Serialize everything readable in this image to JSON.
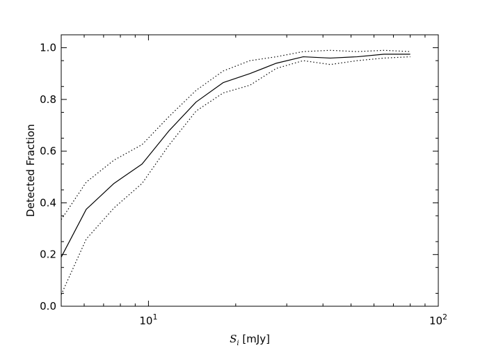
{
  "chart_data": {
    "type": "line",
    "title": "",
    "xlabel": {
      "math_symbol": "S",
      "math_subscript": "i",
      "unit": "[mJy]"
    },
    "ylabel": "Detected Fraction",
    "xscale": "log",
    "xlim": [
      5,
      100
    ],
    "ylim": [
      0,
      1.05
    ],
    "grid": false,
    "legend": "none",
    "x_ticks": [
      {
        "value": 10,
        "base": "10",
        "exp": "1"
      },
      {
        "value": 100,
        "base": "10",
        "exp": "2"
      }
    ],
    "y_ticks": [
      {
        "value": 0.0,
        "label": "0.0"
      },
      {
        "value": 0.2,
        "label": "0.2"
      },
      {
        "value": 0.4,
        "label": "0.4"
      },
      {
        "value": 0.6,
        "label": "0.6"
      },
      {
        "value": 0.8,
        "label": "0.8"
      },
      {
        "value": 1.0,
        "label": "1.0"
      }
    ],
    "series": [
      {
        "style": "solid",
        "color": "#000000",
        "x": [
          5.0,
          6.1,
          7.6,
          9.5,
          11.8,
          14.6,
          18.1,
          22.4,
          27.6,
          34.2,
          42.4,
          52.5,
          65.0,
          80.0
        ],
        "y": [
          0.19,
          0.375,
          0.475,
          0.55,
          0.68,
          0.79,
          0.865,
          0.9,
          0.94,
          0.965,
          0.96,
          0.965,
          0.975,
          0.975
        ]
      },
      {
        "style": "dotted",
        "color": "#000000",
        "x": [
          5.0,
          6.1,
          7.6,
          9.5,
          11.8,
          14.6,
          18.1,
          22.4,
          27.6,
          34.2,
          42.4,
          52.5,
          65.0,
          80.0
        ],
        "y": [
          0.335,
          0.48,
          0.565,
          0.625,
          0.735,
          0.835,
          0.91,
          0.95,
          0.965,
          0.985,
          0.99,
          0.985,
          0.99,
          0.985
        ]
      },
      {
        "style": "dotted",
        "color": "#000000",
        "x": [
          5.0,
          6.1,
          7.6,
          9.5,
          11.8,
          14.6,
          18.1,
          22.4,
          27.6,
          34.2,
          42.4,
          52.5,
          65.0,
          80.0
        ],
        "y": [
          0.045,
          0.26,
          0.38,
          0.475,
          0.625,
          0.755,
          0.825,
          0.855,
          0.92,
          0.95,
          0.935,
          0.95,
          0.96,
          0.965
        ]
      }
    ]
  }
}
